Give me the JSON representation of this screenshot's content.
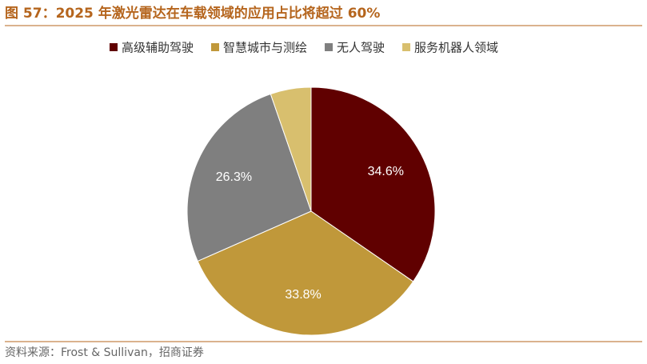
{
  "chart_data": {
    "type": "pie",
    "title": "图 57：2025 年激光雷达在车载领域的应用占比将超过 60%",
    "source": "资料来源：Frost & Sullivan，招商证券",
    "categories": [
      "高级辅助驾驶",
      "智慧城市与测绘",
      "无人驾驶",
      "服务机器人领域"
    ],
    "values": [
      34.6,
      33.8,
      26.3,
      5.3
    ],
    "value_labels": [
      "34.6%",
      "33.8%",
      "26.3%",
      null
    ],
    "colors": [
      "#600000",
      "#c0983a",
      "#7f7f7f",
      "#d8bf6e"
    ],
    "legend": "top"
  }
}
